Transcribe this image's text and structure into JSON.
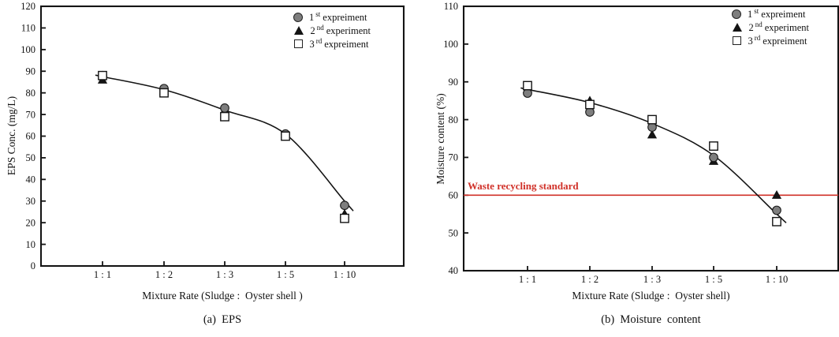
{
  "figure": {
    "background": "#ffffff"
  },
  "colors": {
    "marker_gray_fill": "#7e7e7e",
    "marker_black": "#141414",
    "marker_white_fill": "#ffffff",
    "axis_black": "#141414",
    "trend_line": "#141414",
    "reference_red": "#d03028"
  },
  "legend": {
    "position": "top-right",
    "entries": [
      {
        "num": "1",
        "ord": "st",
        "word": "expreiment",
        "marker": "gray-circle"
      },
      {
        "num": "2",
        "ord": "nd",
        "word": "experiment",
        "marker": "black-triangle"
      },
      {
        "num": "3",
        "ord": "rd",
        "word": "expreiment",
        "marker": "white-square"
      }
    ]
  },
  "chart_data": [
    {
      "id": "eps",
      "type": "scatter",
      "caption": "(a)  EPS",
      "xlabel": "Mixture Rate (Sludge :  Oyster shell )",
      "ylabel": "EPS Conc. (mg/L)",
      "categories": [
        "1 : 1",
        "1 : 2",
        "1 : 3",
        "1 : 5",
        "1 : 10"
      ],
      "ylim": [
        0,
        120
      ],
      "ytick_step": 10,
      "yticks": [
        0,
        10,
        20,
        30,
        40,
        50,
        60,
        70,
        80,
        90,
        100,
        110,
        120
      ],
      "grid": false,
      "legend_position": "top-right",
      "series": [
        {
          "name": "1 st expreiment",
          "marker": "gray-circle",
          "values": [
            88,
            82,
            73,
            61,
            28
          ]
        },
        {
          "name": "2 nd experiment",
          "marker": "black-triangle",
          "values": [
            86,
            81,
            72,
            61,
            24
          ]
        },
        {
          "name": "3 rd expreiment",
          "marker": "white-square",
          "values": [
            88,
            80,
            69,
            60,
            22
          ]
        }
      ],
      "trend_curve": [
        87.5,
        81.5,
        72,
        61,
        30
      ]
    },
    {
      "id": "moisture",
      "type": "scatter",
      "caption": "(b)  Moisture  content",
      "xlabel": "Mixture Rate (Sludge :  Oyster shell)",
      "ylabel": "Moisture content (%)",
      "categories": [
        "1 : 1",
        "1 : 2",
        "1 : 3",
        "1 : 5",
        "1 : 10"
      ],
      "ylim": [
        40,
        110
      ],
      "ytick_step": 10,
      "yticks": [
        40,
        50,
        60,
        70,
        80,
        90,
        100,
        110
      ],
      "grid": false,
      "legend_position": "top-right",
      "series": [
        {
          "name": "1 st expreiment",
          "marker": "gray-circle",
          "values": [
            87,
            82,
            78,
            70,
            56
          ]
        },
        {
          "name": "2 nd experiment",
          "marker": "black-triangle",
          "values": [
            88,
            85,
            76,
            69,
            60
          ]
        },
        {
          "name": "3 rd expreiment",
          "marker": "white-square",
          "values": [
            89,
            84,
            80,
            73,
            53
          ]
        }
      ],
      "trend_curve": [
        88,
        84.5,
        79,
        70.5,
        55
      ],
      "reference_line": {
        "value": 60,
        "label": "Waste recycling standard",
        "color": "#d03028"
      }
    }
  ]
}
